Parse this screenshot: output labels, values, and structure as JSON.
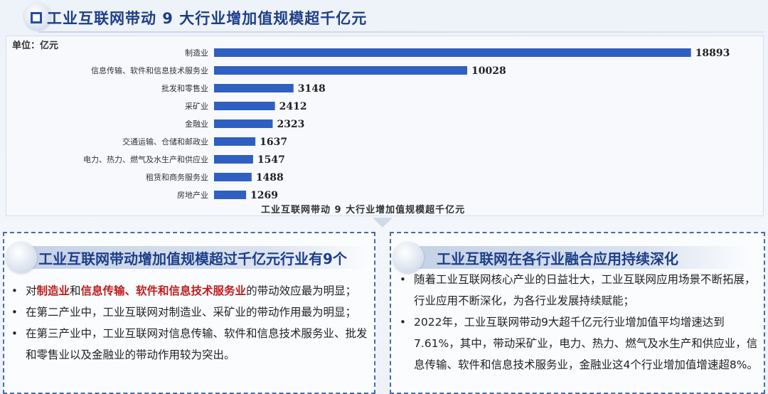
{
  "header": {
    "title": "工业互联网带动 9 大行业增加值规模超千亿元"
  },
  "chart_data": {
    "type": "bar",
    "orientation": "horizontal",
    "title": "",
    "caption": "工业互联网带动 9 大行业增加值规模超千亿元",
    "unit": "单位：亿元",
    "categories": [
      "制造业",
      "信息传输、软件和信息技术服务业",
      "批发和零售业",
      "采矿业",
      "金融业",
      "交通运输、仓储和邮政业",
      "电力、热力、燃气及水生产和供应业",
      "租赁和商务服务业",
      "房地产业"
    ],
    "values": [
      18893,
      10028,
      3148,
      2412,
      2323,
      1637,
      1547,
      1488,
      1269
    ],
    "data_labels": [
      "18893",
      "10028",
      "3148",
      "2412",
      "2323",
      "1637",
      "1547",
      "1488",
      "1269"
    ],
    "xlim": [
      0,
      20000
    ],
    "grid": false,
    "bar_color": "#2f5fc1"
  },
  "left_panel": {
    "heading": "工业互联网带动增加值规模超过千亿元行业有9个",
    "bullet_symbol": "•",
    "bullet1": {
      "pre": "对",
      "hl1": "制造业",
      "mid": "和",
      "hl2": "信息传输、软件和信息技术服务业",
      "post": "的带动效应最为明显；"
    },
    "bullet2": "在第二产业中，工业互联网对制造业、采矿业的带动作用最为明显；",
    "bullet3": "在第三产业中，工业互联网对信息传输、软件和信息技术服务业、批发和零售业以及金融业的带动作用较为突出。"
  },
  "right_panel": {
    "heading": "工业互联网在各行业融合应用持续深化",
    "bullet_symbol": "•",
    "bullet1": "随着工业互联网核心产业的日益壮大，工业互联网应用场景不断拓展，行业应用不断深化，为各行业发展持续赋能；",
    "bullet2": "2022年，工业互联网带动9大超千亿元行业增加值平均增速达到7.61%，其中，带动采矿业，电力、热力、燃气及水生产和供应业，信息传输、软件和信息技术服务业，金融业这4个行业增加值增速超8%。"
  }
}
